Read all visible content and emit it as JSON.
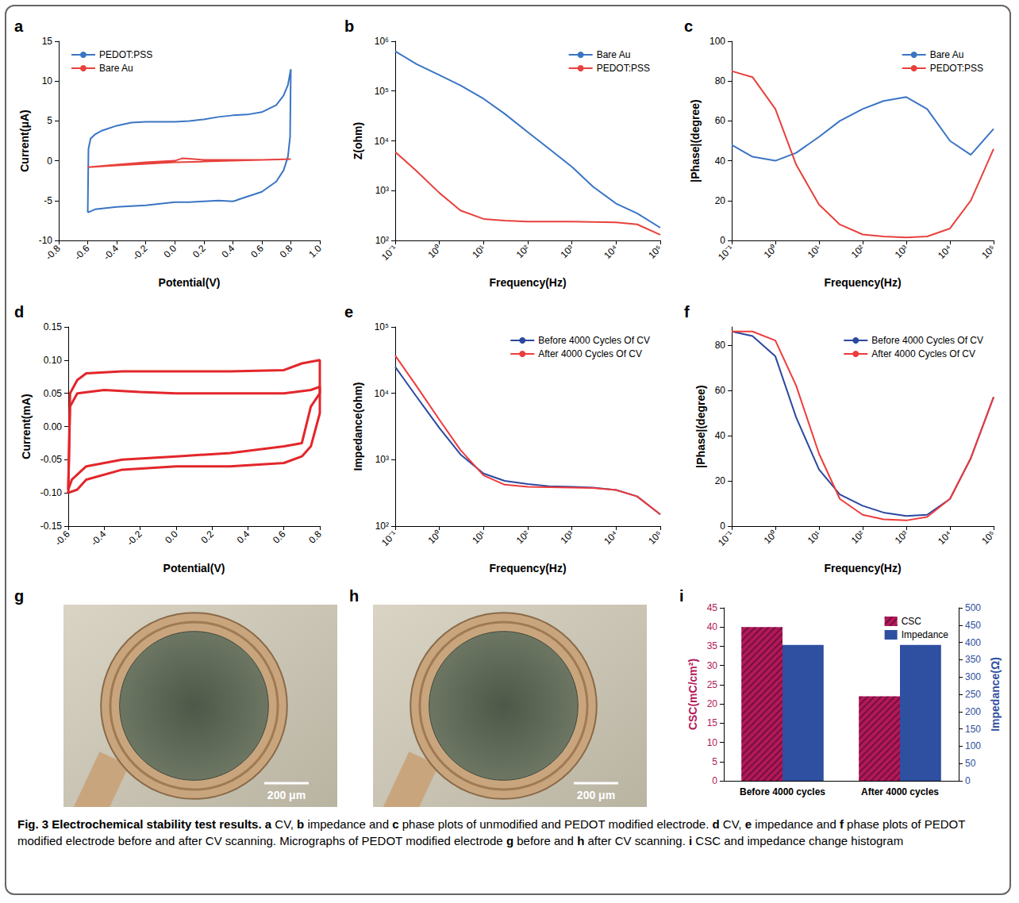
{
  "chart_data": [
    {
      "panel": "a",
      "type": "line",
      "x_label": "Potential(V)",
      "y_label": "Current(μA)",
      "xlim": [
        -0.8,
        1.0
      ],
      "xticks": [
        -0.8,
        -0.6,
        -0.4,
        -0.2,
        {
          "value": 0,
          "label": "0.0"
        },
        0.2,
        0.4,
        0.6,
        0.8,
        {
          "value": 1,
          "label": "1.0"
        }
      ],
      "ylim": [
        -10,
        15
      ],
      "yticks": [
        -10,
        -5,
        0,
        5,
        10,
        15
      ],
      "legend": "upper left",
      "series": [
        {
          "name": "PEDOT:PSS",
          "color": "#3a75c4",
          "x": [
            -0.6,
            -0.595,
            -0.58,
            -0.55,
            -0.5,
            -0.4,
            -0.3,
            -0.2,
            -0.1,
            0,
            0.1,
            0.2,
            0.3,
            0.4,
            0.5,
            0.6,
            0.7,
            0.75,
            0.78,
            0.8,
            0.795,
            0.78,
            0.75,
            0.7,
            0.6,
            0.5,
            0.45,
            0.42,
            0.4,
            0.3,
            0.2,
            0.1,
            0,
            -0.1,
            -0.2,
            -0.3,
            -0.4,
            -0.5,
            -0.55,
            -0.6
          ],
          "values": [
            -6.5,
            1.5,
            2.8,
            3.3,
            3.8,
            4.4,
            4.8,
            4.9,
            4.9,
            4.9,
            5.0,
            5.2,
            5.5,
            5.7,
            5.8,
            6.1,
            7.0,
            8.2,
            9.5,
            11.5,
            3,
            0.5,
            -1.2,
            -2.6,
            -3.9,
            -4.5,
            -4.8,
            -5.0,
            -5.1,
            -5.0,
            -5.1,
            -5.2,
            -5.2,
            -5.4,
            -5.6,
            -5.7,
            -5.8,
            -6.0,
            -6.1,
            -6.5
          ]
        },
        {
          "name": "Bare Au",
          "color": "#e8413c",
          "x": [
            -0.6,
            -0.4,
            -0.2,
            0,
            0.05,
            0.1,
            0.2,
            0.4,
            0.6,
            0.8,
            0.6,
            0.4,
            0.2,
            0,
            -0.2,
            -0.4,
            -0.6
          ],
          "values": [
            -0.8,
            -0.5,
            -0.2,
            0,
            0.3,
            0.25,
            0.1,
            0.1,
            0.1,
            0.2,
            0.1,
            0,
            -0.1,
            -0.2,
            -0.4,
            -0.6,
            -0.8
          ]
        }
      ]
    },
    {
      "panel": "b",
      "type": "line",
      "x_label": "Frequency(Hz)",
      "y_label": "Z(ohm)",
      "log": true,
      "xlim": [
        0.1,
        100000
      ],
      "xticks": [
        {
          "value": 0.1,
          "label": "10⁻¹"
        },
        {
          "value": 1,
          "label": "10⁰"
        },
        {
          "value": 10,
          "label": "10¹"
        },
        {
          "value": 100,
          "label": "10²"
        },
        {
          "value": 1000,
          "label": "10³"
        },
        {
          "value": 10000,
          "label": "10⁴"
        },
        {
          "value": 100000,
          "label": "10⁵"
        }
      ],
      "ylim": [
        100,
        1000000
      ],
      "yticks": [
        {
          "value": 100,
          "label": "10²"
        },
        {
          "value": 1000,
          "label": "10³"
        },
        {
          "value": 10000,
          "label": "10⁴"
        },
        {
          "value": 100000,
          "label": "10⁵"
        },
        {
          "value": 1000000,
          "label": "10⁶"
        }
      ],
      "legend": "upper right",
      "x": [
        0.1,
        0.3,
        1,
        3,
        10,
        30,
        100,
        300,
        1000,
        3000,
        10000,
        30000,
        100000
      ],
      "series": [
        {
          "name": "Bare Au",
          "color": "#3a75c4",
          "values": [
            630000,
            350000,
            210000,
            130000,
            70000,
            35000,
            15000,
            7000,
            3000,
            1200,
            550,
            350,
            180
          ]
        },
        {
          "name": "PEDOT:PSS",
          "color": "#e8413c",
          "values": [
            6000,
            2500,
            900,
            400,
            270,
            250,
            240,
            240,
            240,
            235,
            230,
            210,
            130
          ]
        }
      ]
    },
    {
      "panel": "c",
      "type": "line",
      "x_label": "Frequency(Hz)",
      "y_label": "|Phase|(degree)",
      "log": "x",
      "xlim": [
        0.1,
        100000
      ],
      "xticks": [
        {
          "value": 0.1,
          "label": "10⁻¹"
        },
        {
          "value": 1,
          "label": "10⁰"
        },
        {
          "value": 10,
          "label": "10¹"
        },
        {
          "value": 100,
          "label": "10²"
        },
        {
          "value": 1000,
          "label": "10³"
        },
        {
          "value": 10000,
          "label": "10⁴"
        },
        {
          "value": 100000,
          "label": "10⁵"
        }
      ],
      "ylim": [
        0,
        100
      ],
      "yticks": [
        0,
        20,
        40,
        60,
        80,
        100
      ],
      "legend": "upper right",
      "x": [
        0.1,
        0.3,
        1,
        3,
        10,
        30,
        100,
        300,
        1000,
        3000,
        10000,
        30000,
        100000
      ],
      "series": [
        {
          "name": "Bare Au",
          "color": "#3a75c4",
          "values": [
            48,
            42,
            40,
            44,
            52,
            60,
            66,
            70,
            72,
            66,
            50,
            43,
            56
          ]
        },
        {
          "name": "PEDOT:PSS",
          "color": "#e8413c",
          "values": [
            85,
            82,
            66,
            38,
            18,
            8,
            3,
            2,
            1.5,
            2,
            6,
            20,
            46
          ]
        }
      ]
    },
    {
      "panel": "d",
      "type": "line",
      "x_label": "Potential(V)",
      "y_label": "Current(mA)",
      "xlim": [
        -0.6,
        0.8
      ],
      "xticks": [
        -0.6,
        -0.4,
        -0.2,
        {
          "value": 0,
          "label": "0.0"
        },
        0.2,
        0.4,
        0.6,
        0.8
      ],
      "ylim": [
        -0.15,
        0.15
      ],
      "yticks": [
        -0.15,
        {
          "value": -0.1,
          "label": "-0.10"
        },
        -0.05,
        {
          "value": 0,
          "label": "0.00"
        },
        0.05,
        {
          "value": 0.1,
          "label": "0.10"
        },
        0.15
      ],
      "series": [
        {
          "color": "#e3262b",
          "x": [
            -0.6,
            -0.59,
            -0.55,
            -0.5,
            -0.3,
            0,
            0.3,
            0.6,
            0.7,
            0.8,
            0.8,
            0.75,
            0.7,
            0.6,
            0.3,
            0,
            -0.3,
            -0.5,
            -0.55,
            -0.6
          ],
          "values": [
            -0.1,
            0.05,
            0.07,
            0.08,
            0.083,
            0.083,
            0.083,
            0.085,
            0.095,
            0.1,
            0.02,
            -0.03,
            -0.045,
            -0.055,
            -0.06,
            -0.06,
            -0.065,
            -0.08,
            -0.095,
            -0.1
          ]
        },
        {
          "color": "#e3262b",
          "x": [
            -0.6,
            -0.59,
            -0.55,
            -0.4,
            -0.2,
            0,
            0.3,
            0.6,
            0.75,
            0.8,
            0.8,
            0.75,
            0.7,
            0.6,
            0.3,
            0,
            -0.3,
            -0.5,
            -0.58,
            -0.6
          ],
          "values": [
            -0.095,
            0.03,
            0.05,
            0.055,
            0.052,
            0.05,
            0.05,
            0.05,
            0.055,
            0.06,
            0.05,
            0.03,
            -0.025,
            -0.03,
            -0.04,
            -0.045,
            -0.05,
            -0.06,
            -0.08,
            -0.095
          ]
        }
      ]
    },
    {
      "panel": "e",
      "type": "line",
      "x_label": "Frequency(Hz)",
      "y_label": "Impedance(ohm)",
      "log": true,
      "xlim": [
        0.1,
        100000
      ],
      "xticks": [
        {
          "value": 0.1,
          "label": "10⁻¹"
        },
        {
          "value": 1,
          "label": "10⁰"
        },
        {
          "value": 10,
          "label": "10¹"
        },
        {
          "value": 100,
          "label": "10²"
        },
        {
          "value": 1000,
          "label": "10³"
        },
        {
          "value": 10000,
          "label": "10⁴"
        },
        {
          "value": 100000,
          "label": "10⁵"
        }
      ],
      "ylim": [
        100,
        100000
      ],
      "yticks": [
        {
          "value": 100,
          "label": "10²"
        },
        {
          "value": 1000,
          "label": "10³"
        },
        {
          "value": 10000,
          "label": "10⁴"
        },
        {
          "value": 100000,
          "label": "10⁵"
        }
      ],
      "legend": "upper right",
      "x": [
        0.1,
        0.3,
        1,
        3,
        10,
        30,
        100,
        300,
        1000,
        3000,
        10000,
        30000,
        100000
      ],
      "series": [
        {
          "name": "Before 4000 Cycles Of CV",
          "color": "#2a48a0",
          "values": [
            25000,
            9000,
            3000,
            1200,
            620,
            480,
            430,
            400,
            390,
            380,
            350,
            280,
            150
          ]
        },
        {
          "name": "After 4000 Cycles Of CV",
          "color": "#ef3b3b",
          "values": [
            37000,
            13000,
            4000,
            1400,
            580,
            420,
            390,
            385,
            380,
            375,
            350,
            280,
            150
          ]
        }
      ]
    },
    {
      "panel": "f",
      "type": "line",
      "x_label": "Frequency(Hz)",
      "y_label": "|Phase|(degree)",
      "log": "x",
      "xlim": [
        0.1,
        100000
      ],
      "xticks": [
        {
          "value": 0.1,
          "label": "10⁻¹"
        },
        {
          "value": 1,
          "label": "10⁰"
        },
        {
          "value": 10,
          "label": "10¹"
        },
        {
          "value": 100,
          "label": "10²"
        },
        {
          "value": 1000,
          "label": "10³"
        },
        {
          "value": 10000,
          "label": "10⁴"
        },
        {
          "value": 100000,
          "label": "10⁵"
        }
      ],
      "ylim": [
        0,
        88
      ],
      "yticks": [
        0,
        20,
        40,
        60,
        80
      ],
      "legend": "upper right",
      "x": [
        0.1,
        0.3,
        1,
        3,
        10,
        30,
        100,
        300,
        1000,
        3000,
        10000,
        30000,
        100000
      ],
      "series": [
        {
          "name": "Before 4000 Cycles Of CV",
          "color": "#2a48a0",
          "values": [
            86,
            84,
            75,
            48,
            25,
            14,
            9,
            6,
            4.5,
            5,
            12,
            30,
            57
          ]
        },
        {
          "name": "After 4000 Cycles Of CV",
          "color": "#ef3b3b",
          "values": [
            86,
            86,
            82,
            62,
            32,
            12,
            5,
            3,
            2.5,
            4,
            12,
            30,
            57
          ]
        }
      ]
    },
    {
      "panel": "i",
      "type": "bar",
      "y_label": "CSC(mC/cm²)",
      "y2_label": "Impedance(Ω)",
      "categories": [
        "Before 4000 cycles",
        "After 4000 cycles"
      ],
      "ylim": [
        0,
        45
      ],
      "yticks": [
        0,
        5,
        10,
        15,
        20,
        25,
        30,
        35,
        40,
        45
      ],
      "y2lim": [
        0,
        500
      ],
      "y2ticks": [
        0,
        50,
        100,
        150,
        200,
        250,
        300,
        350,
        400,
        450,
        500
      ],
      "legend": "upper right",
      "series": [
        {
          "name": "CSC",
          "color": "#b2185a",
          "values": [
            40,
            22
          ]
        },
        {
          "name": "Impedance",
          "color": "#2f4fa0",
          "values": [
            393,
            393
          ],
          "axis": "y2"
        }
      ]
    }
  ],
  "images": [
    {
      "panel": "g",
      "scale_bar": "200 μm"
    },
    {
      "panel": "h",
      "scale_bar": "200 μm"
    }
  ],
  "caption": {
    "title": "Fig. 3 Electrochemical stability test results.",
    "text": "a CV, b impedance and c phase plots of unmodified and PEDOT modified electrode. d CV, e impedance and f phase plots of PEDOT modified electrode before and after CV scanning. Micrographs of PEDOT modified electrode g before and h after CV scanning. i CSC and impedance change histogram"
  }
}
